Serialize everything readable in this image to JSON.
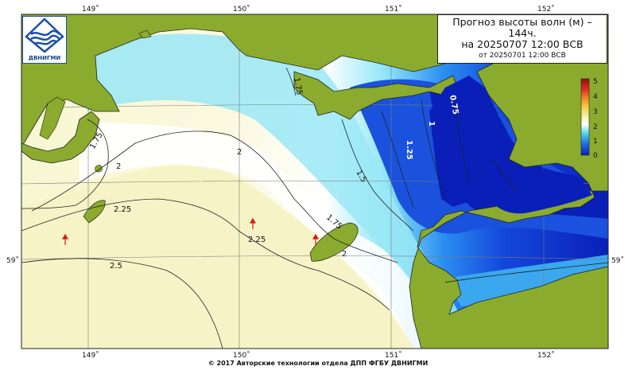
{
  "title": {
    "line1": "Прогноз высоты волн (м) –",
    "line2": "144ч.",
    "line3": "на 20250707 12:00 ВСВ",
    "line4": "от 20250701 12:00 ВСВ"
  },
  "logo": {
    "text": "ДВНИГМИ"
  },
  "footer": "© 2017 Авторские технологии отдела ДПП ФГБУ ДВНИГМИ",
  "axes": {
    "top_ticks": [
      "149˚",
      "150˚",
      "151˚",
      "152˚"
    ],
    "bottom_ticks": [
      "149˚",
      "150˚",
      "151˚",
      "152˚"
    ],
    "left_tick": "59˚",
    "right_tick": "59˚"
  },
  "colorbar": {
    "labels": [
      "5",
      "4",
      "3",
      "2",
      "1",
      "0"
    ]
  },
  "isolines": {
    "west_175": "1.75",
    "west_2": "2",
    "west_225": "2.25",
    "mid_2": "2",
    "mid_225": "2.25",
    "s_25": "2.5",
    "e_175": "1.75",
    "e_15": "1.5",
    "e_125": "1.25",
    "e_1": "1",
    "e_075": "0.75",
    "se_2": "2",
    "top_175": "1.75"
  },
  "colors": {
    "land": "#8aab2e",
    "deep_blue": "#0a1fb8",
    "blue": "#1f5fe6",
    "cyan": "#5fd6f2",
    "pale": "#f8f6cc",
    "white": "#ffffff"
  }
}
